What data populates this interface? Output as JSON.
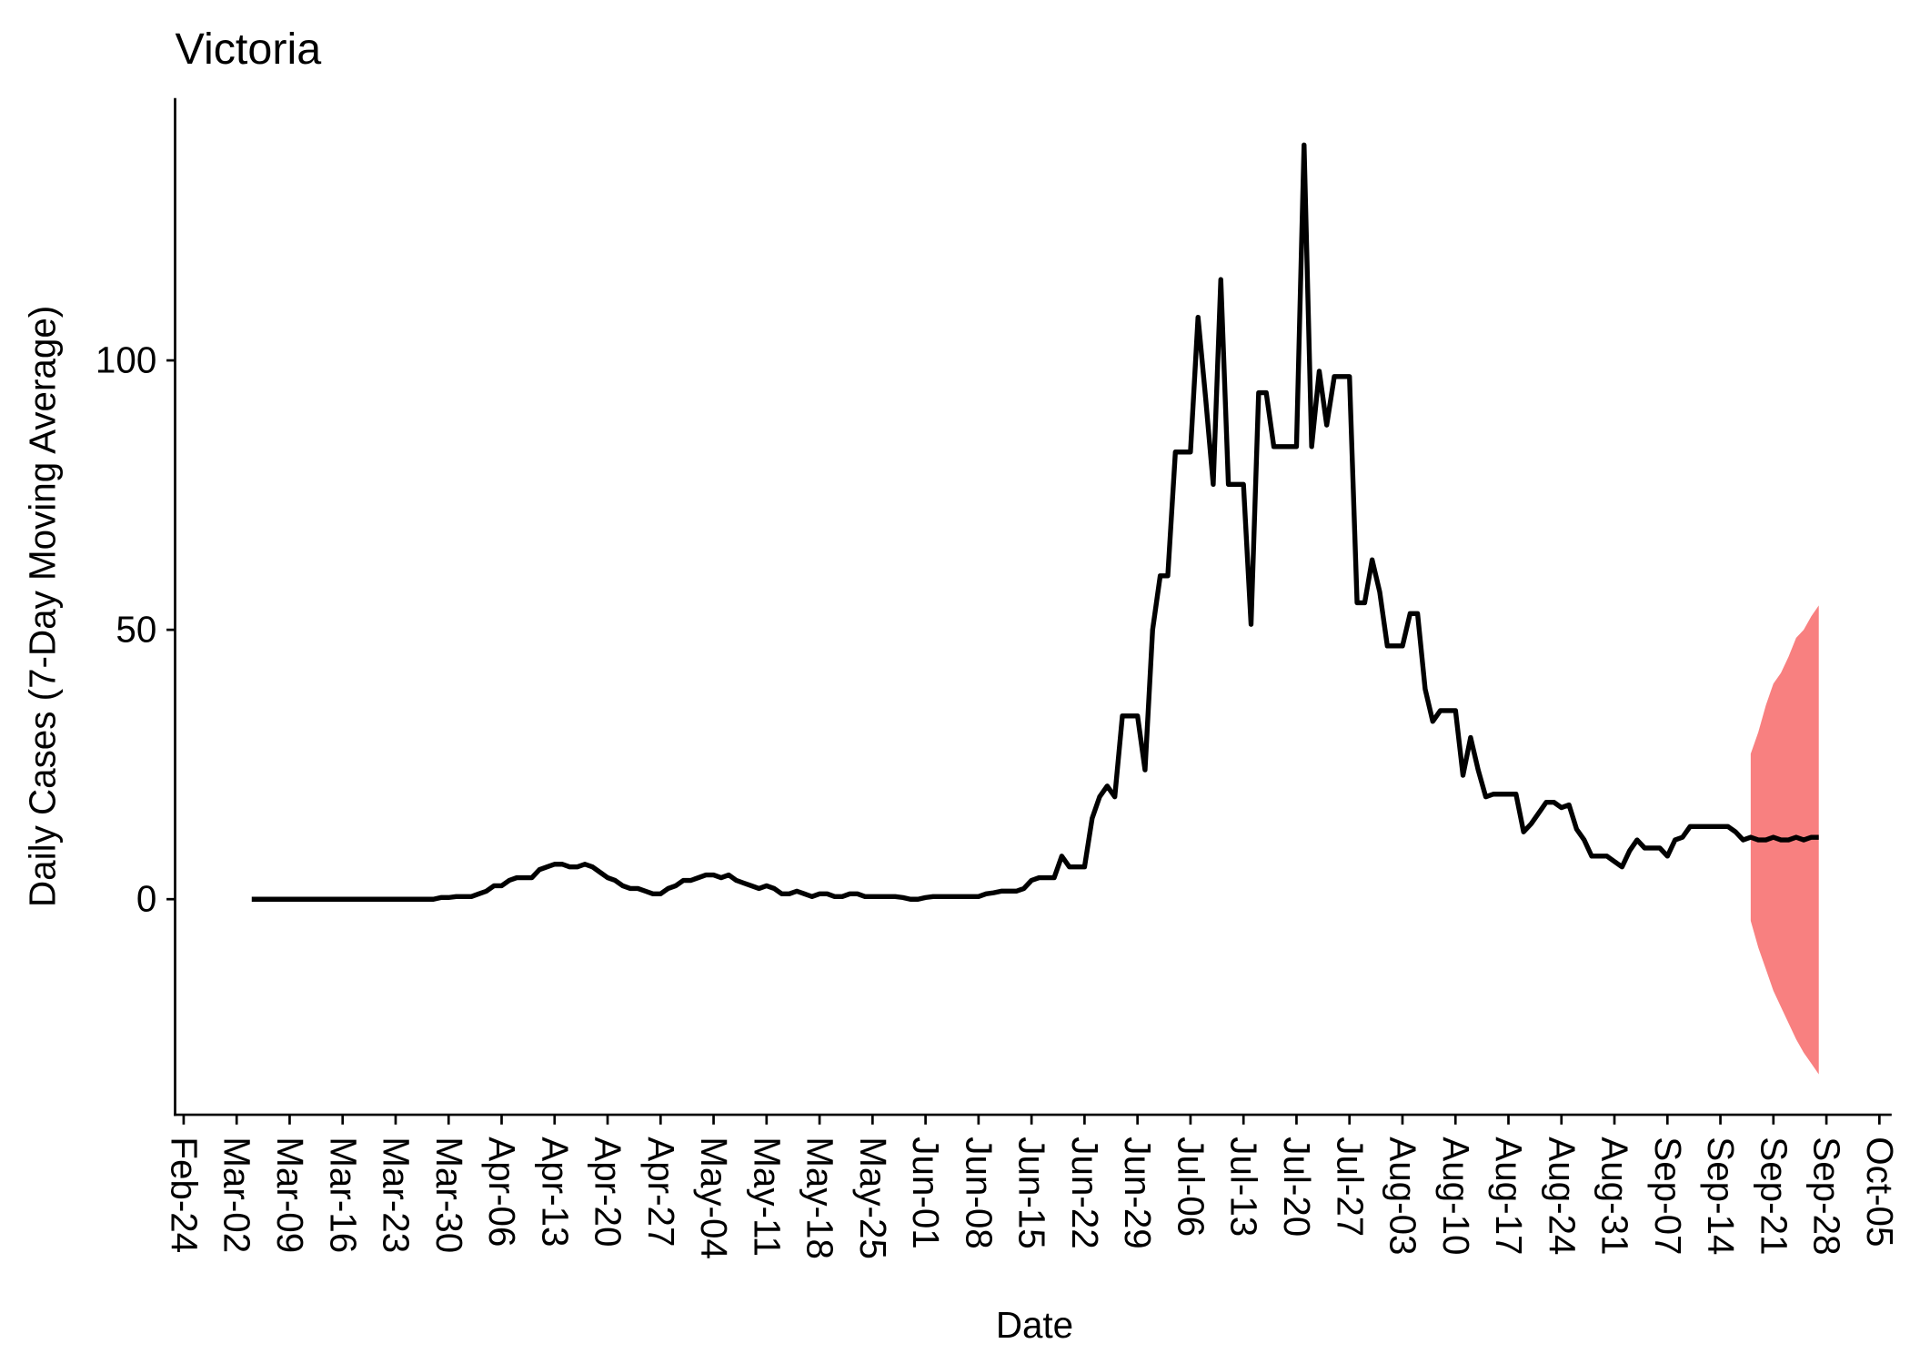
{
  "chart_data": {
    "type": "line",
    "title": "Victoria",
    "x_label": "Date",
    "y_label": "Daily Cases (7-Day Moving Average)",
    "color": "#000000",
    "ribbon_color": "#f88080",
    "ylim": [
      -40,
      148.7
    ],
    "yticks": [
      0,
      50,
      100
    ],
    "categories": [
      "Feb-24",
      null,
      null,
      null,
      null,
      null,
      null,
      "Mar-02",
      null,
      null,
      null,
      null,
      null,
      null,
      "Mar-09",
      null,
      null,
      null,
      null,
      null,
      null,
      "Mar-16",
      null,
      null,
      null,
      null,
      null,
      null,
      "Mar-23",
      null,
      null,
      null,
      null,
      null,
      null,
      "Mar-30",
      null,
      null,
      null,
      null,
      null,
      null,
      "Apr-06",
      null,
      null,
      null,
      null,
      null,
      null,
      "Apr-13",
      null,
      null,
      null,
      null,
      null,
      null,
      "Apr-20",
      null,
      null,
      null,
      null,
      null,
      null,
      "Apr-27",
      null,
      null,
      null,
      null,
      null,
      null,
      "May-04",
      null,
      null,
      null,
      null,
      null,
      null,
      "May-11",
      null,
      null,
      null,
      null,
      null,
      null,
      "May-18",
      null,
      null,
      null,
      null,
      null,
      null,
      "May-25",
      null,
      null,
      null,
      null,
      null,
      null,
      "Jun-01",
      null,
      null,
      null,
      null,
      null,
      null,
      "Jun-08",
      null,
      null,
      null,
      null,
      null,
      null,
      "Jun-15",
      null,
      null,
      null,
      null,
      null,
      null,
      "Jun-22",
      null,
      null,
      null,
      null,
      null,
      null,
      "Jun-29",
      null,
      null,
      null,
      null,
      null,
      null,
      "Jul-06",
      null,
      null,
      null,
      null,
      null,
      null,
      "Jul-13",
      null,
      null,
      null,
      null,
      null,
      null,
      "Jul-20",
      null,
      null,
      null,
      null,
      null,
      null,
      "Jul-27",
      null,
      null,
      null,
      null,
      null,
      null,
      "Aug-03",
      null,
      null,
      null,
      null,
      null,
      null,
      "Aug-10",
      null,
      null,
      null,
      null,
      null,
      null,
      "Aug-17",
      null,
      null,
      null,
      null,
      null,
      null,
      "Aug-24",
      null,
      null,
      null,
      null,
      null,
      null,
      "Aug-31",
      null,
      null,
      null,
      null,
      null,
      null,
      "Sep-07",
      null,
      null,
      null,
      null,
      null,
      null,
      "Sep-14",
      null,
      null,
      null,
      null,
      null,
      null,
      "Sep-21",
      null,
      null,
      null,
      null,
      null,
      null,
      "Sep-28",
      null,
      null,
      null,
      null,
      null,
      null,
      "Oct-05"
    ],
    "values": [
      null,
      null,
      null,
      null,
      null,
      null,
      null,
      null,
      null,
      0,
      0,
      0,
      0,
      0,
      0,
      0,
      0,
      0,
      0,
      0,
      0,
      0,
      0,
      0,
      0,
      0,
      0,
      0,
      0,
      0,
      0,
      0,
      0,
      0,
      0.3,
      0.3,
      0.5,
      0.5,
      0.5,
      1,
      1.5,
      2.5,
      2.5,
      3.5,
      4,
      4,
      4,
      5.5,
      6,
      6.5,
      6.5,
      6,
      6,
      6.5,
      6,
      5,
      4,
      3.5,
      2.5,
      2,
      2,
      1.5,
      1,
      1,
      2,
      2.5,
      3.5,
      3.5,
      4,
      4.5,
      4.5,
      4,
      4.5,
      3.5,
      3,
      2.5,
      2,
      2.5,
      2,
      1,
      1,
      1.5,
      1,
      0.5,
      1,
      1,
      0.5,
      0.5,
      1,
      1,
      0.5,
      0.5,
      0.5,
      0.5,
      0.5,
      0.3,
      0,
      0,
      0.3,
      0.5,
      0.5,
      0.5,
      0.5,
      0.5,
      0.5,
      0.5,
      1,
      1.2,
      1.5,
      1.5,
      1.5,
      2,
      3.5,
      4,
      4,
      4,
      8,
      6,
      6,
      6,
      15,
      19,
      21,
      19,
      34,
      34,
      34,
      24,
      50,
      60,
      60,
      83,
      83,
      83,
      108,
      93,
      77,
      115,
      77,
      77,
      77,
      51,
      94,
      94,
      84,
      84,
      84,
      84,
      140,
      84,
      98,
      88,
      97,
      97,
      97,
      55,
      55,
      63,
      57,
      47,
      47,
      47,
      53,
      53,
      39,
      33,
      35,
      35,
      35,
      23,
      30,
      24,
      19,
      19.5,
      19.5,
      19.5,
      19.5,
      12.5,
      14,
      16,
      18,
      18,
      17,
      17.5,
      13,
      11,
      8,
      8,
      8,
      7,
      6,
      9,
      11,
      9.5,
      9.5,
      9.5,
      8,
      11,
      11.5,
      13.5,
      13.5,
      13.5,
      13.5,
      13.5,
      13.5,
      12.5,
      11,
      11.5,
      11,
      11,
      11.5,
      11,
      11,
      11.5,
      11,
      11.5,
      11.5,
      null,
      null,
      null,
      null,
      null,
      null,
      null,
      null
    ],
    "ribbon_lower": [
      null,
      null,
      null,
      null,
      null,
      null,
      null,
      null,
      null,
      null,
      null,
      null,
      null,
      null,
      null,
      null,
      null,
      null,
      null,
      null,
      null,
      null,
      null,
      null,
      null,
      null,
      null,
      null,
      null,
      null,
      null,
      null,
      null,
      null,
      null,
      null,
      null,
      null,
      null,
      null,
      null,
      null,
      null,
      null,
      null,
      null,
      null,
      null,
      null,
      null,
      null,
      null,
      null,
      null,
      null,
      null,
      null,
      null,
      null,
      null,
      null,
      null,
      null,
      null,
      null,
      null,
      null,
      null,
      null,
      null,
      null,
      null,
      null,
      null,
      null,
      null,
      null,
      null,
      null,
      null,
      null,
      null,
      null,
      null,
      null,
      null,
      null,
      null,
      null,
      null,
      null,
      null,
      null,
      null,
      null,
      null,
      null,
      null,
      null,
      null,
      null,
      null,
      null,
      null,
      null,
      null,
      null,
      null,
      null,
      null,
      null,
      null,
      null,
      null,
      null,
      null,
      null,
      null,
      null,
      null,
      null,
      null,
      null,
      null,
      null,
      null,
      null,
      null,
      null,
      null,
      null,
      null,
      null,
      null,
      null,
      null,
      null,
      null,
      null,
      null,
      null,
      null,
      null,
      null,
      null,
      null,
      null,
      null,
      null,
      null,
      null,
      null,
      null,
      null,
      null,
      null,
      null,
      null,
      null,
      null,
      null,
      null,
      null,
      null,
      null,
      null,
      null,
      null,
      null,
      null,
      null,
      null,
      null,
      null,
      null,
      null,
      null,
      null,
      null,
      null,
      null,
      null,
      null,
      null,
      null,
      null,
      null,
      null,
      null,
      null,
      null,
      null,
      null,
      null,
      null,
      null,
      null,
      null,
      null,
      null,
      null,
      null,
      null,
      null,
      null,
      null,
      null,
      -4,
      -9,
      -13,
      -17,
      -20,
      -23,
      -26,
      -28.5,
      -30.5,
      -32.5,
      null,
      null,
      null,
      null,
      null,
      null,
      null,
      null
    ],
    "ribbon_upper": [
      null,
      null,
      null,
      null,
      null,
      null,
      null,
      null,
      null,
      null,
      null,
      null,
      null,
      null,
      null,
      null,
      null,
      null,
      null,
      null,
      null,
      null,
      null,
      null,
      null,
      null,
      null,
      null,
      null,
      null,
      null,
      null,
      null,
      null,
      null,
      null,
      null,
      null,
      null,
      null,
      null,
      null,
      null,
      null,
      null,
      null,
      null,
      null,
      null,
      null,
      null,
      null,
      null,
      null,
      null,
      null,
      null,
      null,
      null,
      null,
      null,
      null,
      null,
      null,
      null,
      null,
      null,
      null,
      null,
      null,
      null,
      null,
      null,
      null,
      null,
      null,
      null,
      null,
      null,
      null,
      null,
      null,
      null,
      null,
      null,
      null,
      null,
      null,
      null,
      null,
      null,
      null,
      null,
      null,
      null,
      null,
      null,
      null,
      null,
      null,
      null,
      null,
      null,
      null,
      null,
      null,
      null,
      null,
      null,
      null,
      null,
      null,
      null,
      null,
      null,
      null,
      null,
      null,
      null,
      null,
      null,
      null,
      null,
      null,
      null,
      null,
      null,
      null,
      null,
      null,
      null,
      null,
      null,
      null,
      null,
      null,
      null,
      null,
      null,
      null,
      null,
      null,
      null,
      null,
      null,
      null,
      null,
      null,
      null,
      null,
      null,
      null,
      null,
      null,
      null,
      null,
      null,
      null,
      null,
      null,
      null,
      null,
      null,
      null,
      null,
      null,
      null,
      null,
      null,
      null,
      null,
      null,
      null,
      null,
      null,
      null,
      null,
      null,
      null,
      null,
      null,
      null,
      null,
      null,
      null,
      null,
      null,
      null,
      null,
      null,
      null,
      null,
      null,
      null,
      null,
      null,
      null,
      null,
      null,
      null,
      null,
      null,
      null,
      null,
      null,
      null,
      null,
      27,
      31,
      36,
      40,
      42,
      45,
      48.5,
      50,
      52.5,
      54.5,
      null,
      null,
      null,
      null,
      null,
      null,
      null,
      null
    ]
  }
}
